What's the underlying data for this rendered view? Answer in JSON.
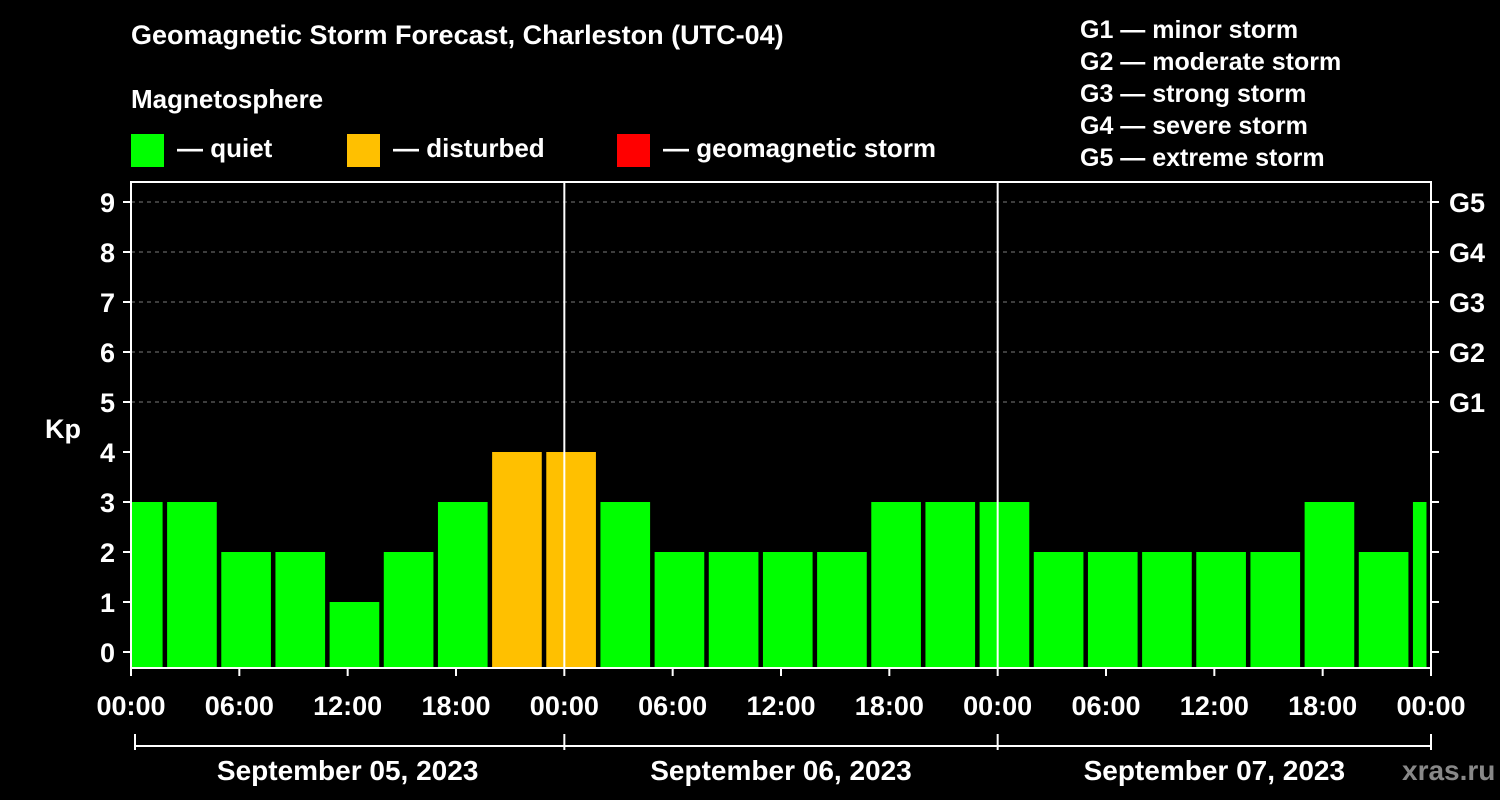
{
  "title": "Geomagnetic Storm Forecast, Charleston (UTC-04)",
  "subtitle": "Magnetosphere",
  "legend": [
    {
      "label": "— quiet",
      "color": "#00ff00"
    },
    {
      "label": "— disturbed",
      "color": "#ffc000"
    },
    {
      "label": "— geomagnetic storm",
      "color": "#ff0000"
    }
  ],
  "storm_levels": [
    "G1 — minor storm",
    "G2 — moderate storm",
    "G3 — strong storm",
    "G4 — severe storm",
    "G5 — extreme storm"
  ],
  "watermark": "xras.ru",
  "chart_data": {
    "type": "bar",
    "title": "Geomagnetic Storm Forecast, Charleston (UTC-04)",
    "ylabel": "Kp",
    "ylim": [
      0,
      9
    ],
    "y_ticks": [
      0,
      1,
      2,
      3,
      4,
      5,
      6,
      7,
      8,
      9
    ],
    "right_ticks": [
      {
        "kp": 5,
        "label": "G1"
      },
      {
        "kp": 6,
        "label": "G2"
      },
      {
        "kp": 7,
        "label": "G3"
      },
      {
        "kp": 8,
        "label": "G4"
      },
      {
        "kp": 9,
        "label": "G5"
      }
    ],
    "x_range_hours": [
      0,
      72
    ],
    "x_tick_labels": [
      "00:00",
      "06:00",
      "12:00",
      "18:00",
      "00:00",
      "06:00",
      "12:00",
      "18:00",
      "00:00",
      "06:00",
      "12:00",
      "18:00",
      "00:00"
    ],
    "days": [
      "September 05, 2023",
      "September 06, 2023",
      "September 07, 2023"
    ],
    "bars": [
      {
        "start": 0,
        "end": 1.75,
        "kp": 3,
        "status": "quiet"
      },
      {
        "start": 2,
        "end": 4.75,
        "kp": 3,
        "status": "quiet"
      },
      {
        "start": 5,
        "end": 7.75,
        "kp": 2,
        "status": "quiet"
      },
      {
        "start": 8,
        "end": 10.75,
        "kp": 2,
        "status": "quiet"
      },
      {
        "start": 11,
        "end": 13.75,
        "kp": 1,
        "status": "quiet"
      },
      {
        "start": 14,
        "end": 16.75,
        "kp": 2,
        "status": "quiet"
      },
      {
        "start": 17,
        "end": 19.75,
        "kp": 3,
        "status": "quiet"
      },
      {
        "start": 20,
        "end": 22.75,
        "kp": 4,
        "status": "disturbed"
      },
      {
        "start": 23,
        "end": 25.75,
        "kp": 4,
        "status": "disturbed"
      },
      {
        "start": 26,
        "end": 28.75,
        "kp": 3,
        "status": "quiet"
      },
      {
        "start": 29,
        "end": 31.75,
        "kp": 2,
        "status": "quiet"
      },
      {
        "start": 32,
        "end": 34.75,
        "kp": 2,
        "status": "quiet"
      },
      {
        "start": 35,
        "end": 37.75,
        "kp": 2,
        "status": "quiet"
      },
      {
        "start": 38,
        "end": 40.75,
        "kp": 2,
        "status": "quiet"
      },
      {
        "start": 41,
        "end": 43.75,
        "kp": 3,
        "status": "quiet"
      },
      {
        "start": 44,
        "end": 46.75,
        "kp": 3,
        "status": "quiet"
      },
      {
        "start": 47,
        "end": 49.75,
        "kp": 3,
        "status": "quiet"
      },
      {
        "start": 50,
        "end": 52.75,
        "kp": 2,
        "status": "quiet"
      },
      {
        "start": 53,
        "end": 55.75,
        "kp": 2,
        "status": "quiet"
      },
      {
        "start": 56,
        "end": 58.75,
        "kp": 2,
        "status": "quiet"
      },
      {
        "start": 59,
        "end": 61.75,
        "kp": 2,
        "status": "quiet"
      },
      {
        "start": 62,
        "end": 64.75,
        "kp": 2,
        "status": "quiet"
      },
      {
        "start": 65,
        "end": 67.75,
        "kp": 3,
        "status": "quiet"
      },
      {
        "start": 68,
        "end": 70.75,
        "kp": 2,
        "status": "quiet"
      },
      {
        "start": 71,
        "end": 71.75,
        "kp": 3,
        "status": "quiet"
      }
    ],
    "day_separators_hours": [
      24,
      48
    ]
  }
}
